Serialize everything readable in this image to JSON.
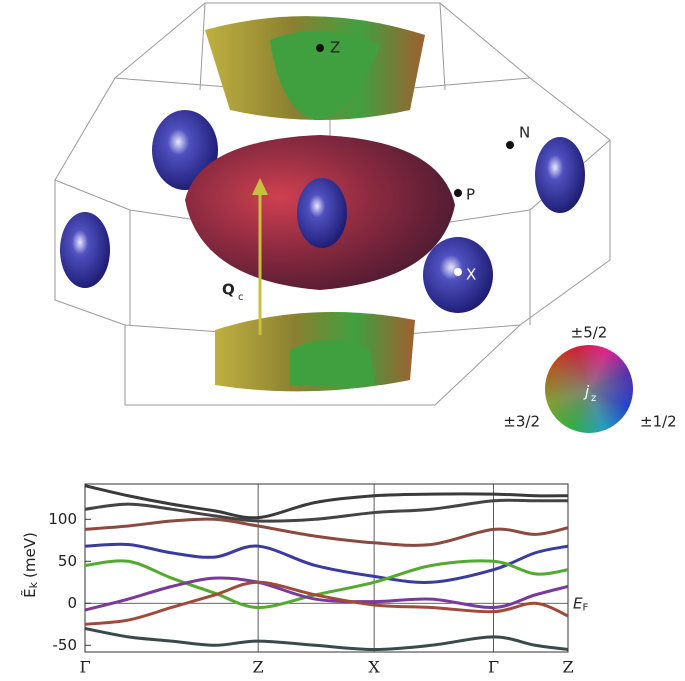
{
  "diagram": {
    "labels": {
      "Z": "Z",
      "N": "N",
      "P": "P",
      "X": "X",
      "Q": "Q",
      "Q_sub": "c"
    },
    "wheel": {
      "top": "±5/2",
      "left": "±3/2",
      "right": "±1/2",
      "center": "j",
      "center_sub": "z"
    }
  },
  "chart_data": {
    "type": "line",
    "ylabel": "Ẽ",
    "ylabel_sub": "k",
    "ylabel_unit": "(meV)",
    "fermi_label": "E",
    "fermi_label_sub": "F",
    "fermi_level": 0,
    "x": [
      0,
      0.25,
      0.5,
      0.75,
      1,
      1.33,
      1.67,
      2,
      2.36,
      2.6,
      2.79
    ],
    "xlim": [
      0,
      2.79
    ],
    "xticks": [
      {
        "value": 0,
        "label": "Γ"
      },
      {
        "value": 1,
        "label": "Z"
      },
      {
        "value": 1.67,
        "label": "X"
      },
      {
        "value": 2.36,
        "label": "Γ"
      },
      {
        "value": 2.79,
        "label": "Z"
      }
    ],
    "xgrid": true,
    "ylim": [
      -58,
      142
    ],
    "yticks": [
      -50,
      0,
      50,
      100
    ],
    "series": [
      {
        "color": "#3a3a3a",
        "values": [
          140,
          128,
          118,
          110,
          102,
          120,
          128,
          130,
          130,
          128,
          128
        ]
      },
      {
        "color": "#444444",
        "values": [
          112,
          118,
          112,
          104,
          98,
          100,
          108,
          112,
          122,
          122,
          122
        ]
      },
      {
        "color": "#8a4a40",
        "values": [
          88,
          92,
          98,
          100,
          92,
          80,
          72,
          70,
          88,
          82,
          90
        ]
      },
      {
        "color": "#3a3aa0",
        "values": [
          68,
          70,
          60,
          55,
          68,
          45,
          32,
          25,
          40,
          60,
          68
        ]
      },
      {
        "color": "#55a830",
        "values": [
          45,
          50,
          30,
          12,
          -5,
          10,
          25,
          45,
          50,
          35,
          40
        ]
      },
      {
        "color": "#7a3a9a",
        "values": [
          -8,
          5,
          20,
          30,
          25,
          5,
          2,
          5,
          -5,
          10,
          20
        ]
      },
      {
        "color": "#a04a3a",
        "values": [
          -25,
          -20,
          -5,
          10,
          25,
          10,
          -2,
          -5,
          -10,
          0,
          -15
        ]
      },
      {
        "color": "#3a4a4a",
        "values": [
          -30,
          -40,
          -45,
          -50,
          -45,
          -50,
          -55,
          -50,
          -40,
          -50,
          -55
        ]
      }
    ]
  }
}
